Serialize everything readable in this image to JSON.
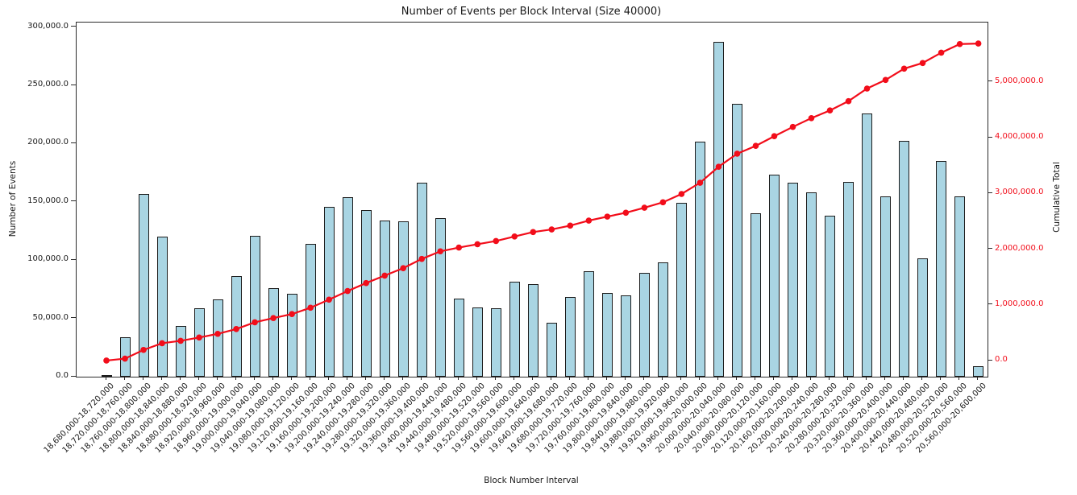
{
  "chart_data": {
    "type": "bar+line",
    "title": "Number of Events per Block Interval (Size 40000)",
    "xlabel": "Block Number Interval",
    "ylabel_left": "Number of Events",
    "ylabel_right": "Cumulative Total",
    "legend_position": "none",
    "grid": false,
    "categories": [
      "18,680,000-18,720,000",
      "18,720,000-18,760,000",
      "18,760,000-18,800,000",
      "18,800,000-18,840,000",
      "18,840,000-18,880,000",
      "18,880,000-18,920,000",
      "18,920,000-18,960,000",
      "18,960,000-19,000,000",
      "19,000,000-19,040,000",
      "19,040,000-19,080,000",
      "19,080,000-19,120,000",
      "19,120,000-19,160,000",
      "19,160,000-19,200,000",
      "19,200,000-19,240,000",
      "19,240,000-19,280,000",
      "19,280,000-19,320,000",
      "19,320,000-19,360,000",
      "19,360,000-19,400,000",
      "19,400,000-19,440,000",
      "19,440,000-19,480,000",
      "19,480,000-19,520,000",
      "19,520,000-19,560,000",
      "19,560,000-19,600,000",
      "19,600,000-19,640,000",
      "19,640,000-19,680,000",
      "19,680,000-19,720,000",
      "19,720,000-19,760,000",
      "19,760,000-19,800,000",
      "19,800,000-19,840,000",
      "19,840,000-19,880,000",
      "19,880,000-19,920,000",
      "19,920,000-19,960,000",
      "19,960,000-20,000,000",
      "20,000,000-20,040,000",
      "20,040,000-20,080,000",
      "20,080,000-20,120,000",
      "20,120,000-20,160,000",
      "20,160,000-20,200,000",
      "20,200,000-20,240,000",
      "20,240,000-20,280,000",
      "20,280,000-20,320,000",
      "20,320,000-20,360,000",
      "20,360,000-20,400,000",
      "20,400,000-20,440,000",
      "20,440,000-20,480,000",
      "20,480,000-20,520,000",
      "20,520,000-20,560,000",
      "20,560,000-20,600,000"
    ],
    "bar_series": {
      "name": "Number of Events",
      "color": "#a9d5e3",
      "edge_color": "#1c1c1c",
      "values": [
        800,
        34000,
        156800,
        120000,
        43700,
        58800,
        66300,
        86300,
        121000,
        76200,
        70900,
        114000,
        145600,
        154000,
        143200,
        134100,
        133500,
        166200,
        136200,
        67300,
        59500,
        58400,
        81800,
        79200,
        46200,
        68700,
        90400,
        71700,
        70100,
        89200,
        97900,
        149300,
        201600,
        287500,
        233900,
        140500,
        173500,
        166500,
        158000,
        138200,
        167000,
        226000,
        155000,
        202300,
        101300,
        185000,
        155000,
        9100
      ]
    },
    "line_series": {
      "name": "Cumulative Total",
      "color": "#f20d1a",
      "marker": "circle",
      "axis": "right",
      "values": [
        800,
        34800,
        191600,
        311600,
        355300,
        414100,
        480400,
        566700,
        687700,
        763900,
        834800,
        948800,
        1094400,
        1248400,
        1391600,
        1525700,
        1659200,
        1825400,
        1961600,
        2028900,
        2088400,
        2146800,
        2228600,
        2307800,
        2354000,
        2422700,
        2513100,
        2584800,
        2654900,
        2744100,
        2842000,
        2991300,
        3192900,
        3480400,
        3714300,
        3854800,
        4028300,
        4194800,
        4352800,
        4491000,
        4658000,
        4884000,
        5039000,
        5241300,
        5342600,
        5527600,
        5682600,
        5691700
      ]
    },
    "left_axis": {
      "tick_labels": [
        "0.0",
        "50,000.0",
        "100,000.0",
        "150,000.0",
        "200,000.0",
        "250,000.0",
        "300,000.0"
      ],
      "tick_values": [
        0,
        50000,
        100000,
        150000,
        200000,
        250000,
        300000
      ],
      "range": [
        0,
        303900
      ],
      "color": "#1a1a1a"
    },
    "right_axis": {
      "tick_labels": [
        "0.0",
        "1,000,000.0",
        "2,000,000.0",
        "3,000,000.0",
        "4,000,000.0",
        "5,000,000.0"
      ],
      "tick_values": [
        0,
        1000000,
        2000000,
        3000000,
        4000000,
        5000000
      ],
      "range": [
        -289000,
        6069000
      ],
      "color": "#f20d1a"
    }
  }
}
